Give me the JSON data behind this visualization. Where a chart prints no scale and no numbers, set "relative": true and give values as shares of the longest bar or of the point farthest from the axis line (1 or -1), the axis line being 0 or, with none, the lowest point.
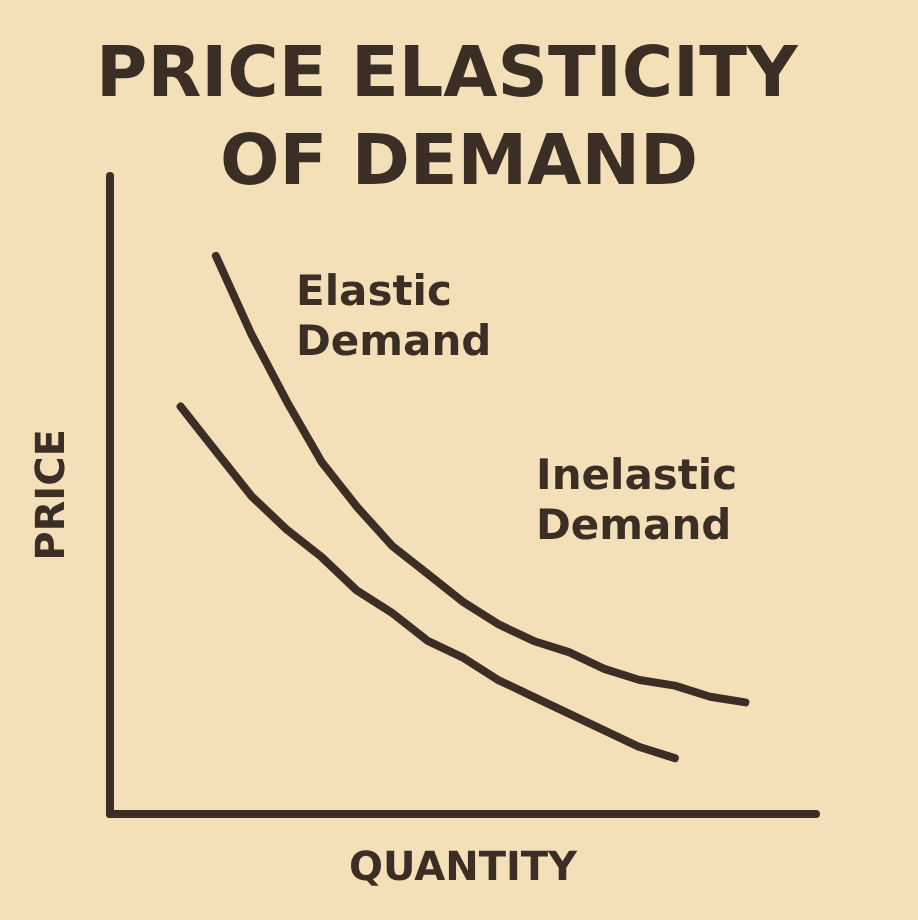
{
  "chart_data": {
    "type": "line",
    "relative": true,
    "title": "PRICE ELASTICITY OF DEMAND",
    "xlabel": "QUANTITY",
    "ylabel": "PRICE",
    "marker": "none",
    "line_style": "solid",
    "annotations": [
      "Elastic Demand",
      "Inelastic Demand"
    ],
    "categories": [
      null,
      null,
      null,
      null,
      null,
      null,
      null,
      null,
      null,
      null,
      null,
      null,
      null,
      null,
      null,
      null,
      null,
      null,
      null,
      null,
      null
    ],
    "series": [
      {
        "color": "#3b2f25",
        "values": [
          null,
          null,
          null,
          1,
          0.86,
          0.74,
          0.63,
          0.55,
          0.48,
          0.43,
          0.38,
          0.34,
          0.31,
          0.29,
          0.26,
          0.24,
          0.23,
          0.21,
          0.2,
          null,
          null
        ]
      },
      {
        "color": "#3b2f25",
        "values": [
          null,
          null,
          0.73,
          0.65,
          0.57,
          0.51,
          0.46,
          0.4,
          0.36,
          0.31,
          0.28,
          0.24,
          0.21,
          0.18,
          0.15,
          0.12,
          0.1,
          null,
          null,
          null,
          null
        ]
      }
    ]
  }
}
